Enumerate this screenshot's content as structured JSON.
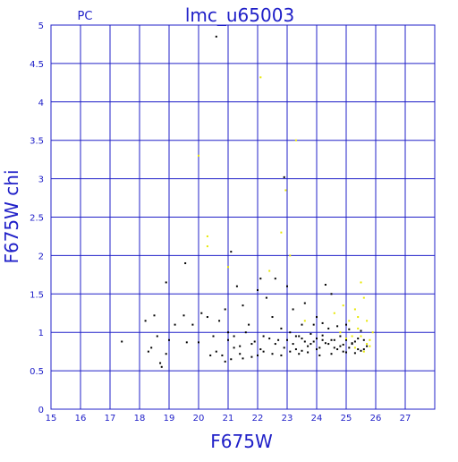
{
  "chart_data": {
    "type": "scatter",
    "title": "lmc_u65003",
    "subtitle": "PC",
    "x_label": "F675W",
    "y_label": "F675W chi",
    "xlim": [
      15,
      28
    ],
    "ylim": [
      0,
      5
    ],
    "xticks": [
      15,
      16,
      17,
      18,
      19,
      20,
      21,
      22,
      23,
      24,
      25,
      26,
      27
    ],
    "yticks": [
      0,
      0.5,
      1,
      1.5,
      2,
      2.5,
      3,
      3.5,
      4,
      4.5,
      5
    ],
    "grid": true,
    "axis_color": "#2020c8",
    "series": [
      {
        "color": "#000000",
        "x": [
          20.6,
          22.9,
          17.4,
          18.2,
          18.5,
          18.6,
          18.7,
          18.75,
          18.4,
          18.9,
          19.0,
          18.9,
          19.5,
          19.55,
          19.6,
          19.8,
          20.0,
          20.1,
          20.3,
          20.5,
          20.6,
          20.4,
          20.7,
          20.9,
          21.0,
          21.1,
          21.2,
          21.3,
          21.5,
          21.7,
          21.8,
          22.0,
          22.1,
          22.2,
          22.3,
          22.5,
          22.6,
          22.7,
          22.8,
          23.0,
          23.1,
          23.2,
          23.4,
          23.5,
          23.6,
          23.8,
          24.0,
          24.2,
          24.3,
          24.4,
          24.5,
          24.6,
          24.8,
          25.0,
          25.2,
          25.4,
          25.6,
          21.0,
          21.2,
          21.4,
          21.6,
          21.9,
          22.1,
          22.4,
          22.6,
          22.9,
          23.0,
          23.2,
          23.3,
          23.5,
          23.7,
          23.9,
          24.1,
          24.3,
          24.5,
          24.7,
          24.9,
          25.1,
          25.3,
          25.5,
          25.7,
          23.1,
          23.3,
          23.6,
          23.8,
          24.0,
          24.2,
          24.4,
          24.6,
          24.8,
          25.0,
          25.2,
          25.4,
          25.6,
          23.4,
          23.7,
          24.1,
          24.5,
          24.9,
          25.3,
          22.5,
          22.8,
          21.4,
          21.8,
          22.2,
          20.8,
          21.1,
          19.2,
          18.3,
          24.7,
          25.1,
          25.5,
          23.9,
          24.2,
          22.0,
          21.5,
          20.9,
          24.0,
          23.5,
          25.0
        ],
        "values": [
          4.85,
          3.02,
          0.88,
          1.15,
          1.22,
          0.95,
          0.6,
          0.55,
          0.8,
          1.65,
          0.9,
          0.72,
          1.22,
          1.9,
          0.87,
          1.1,
          0.87,
          1.25,
          1.2,
          0.95,
          0.75,
          0.7,
          1.15,
          1.3,
          1.0,
          2.05,
          0.8,
          1.6,
          1.35,
          1.1,
          0.85,
          1.55,
          1.7,
          0.95,
          1.45,
          1.2,
          1.7,
          0.9,
          1.05,
          1.6,
          0.75,
          1.3,
          0.95,
          1.1,
          1.38,
          0.85,
          1.2,
          0.9,
          1.62,
          1.05,
          1.5,
          0.8,
          0.95,
          1.1,
          0.85,
          0.78,
          0.9,
          0.9,
          0.95,
          0.82,
          1.0,
          0.88,
          0.78,
          0.92,
          0.85,
          0.8,
          0.9,
          0.85,
          0.78,
          0.92,
          0.82,
          0.88,
          0.8,
          0.86,
          0.9,
          0.78,
          0.84,
          0.8,
          0.88,
          0.76,
          0.82,
          1.0,
          0.95,
          0.88,
          0.98,
          0.92,
          0.96,
          0.85,
          0.9,
          0.82,
          0.9,
          0.86,
          0.92,
          0.78,
          0.72,
          0.74,
          0.7,
          0.72,
          0.75,
          0.73,
          0.72,
          0.7,
          0.72,
          0.68,
          0.75,
          0.7,
          0.65,
          1.1,
          0.75,
          1.08,
          1.04,
          1.02,
          1.1,
          1.12,
          0.7,
          0.66,
          0.62,
          0.78,
          0.76,
          0.74
        ]
      },
      {
        "color": "#e8e800",
        "x": [
          22.1,
          23.3,
          20.0,
          22.95,
          22.8,
          20.3,
          20.3,
          23.1,
          21.0,
          22.4,
          25.5,
          25.6,
          25.3,
          25.7,
          25.4,
          25.5,
          25.7,
          25.8,
          25.2,
          24.8,
          24.6,
          23.6,
          25.9,
          25.3,
          25.6,
          25.1,
          24.9,
          25.4,
          25.8,
          25.0
        ],
        "values": [
          4.32,
          3.5,
          3.3,
          2.85,
          2.3,
          2.25,
          2.12,
          2.0,
          1.85,
          1.8,
          1.65,
          1.45,
          1.3,
          1.15,
          1.05,
          0.95,
          0.85,
          0.9,
          0.95,
          1.0,
          1.25,
          1.15,
          1.0,
          0.8,
          0.75,
          1.15,
          1.35,
          1.2,
          0.82,
          0.92
        ]
      }
    ]
  }
}
